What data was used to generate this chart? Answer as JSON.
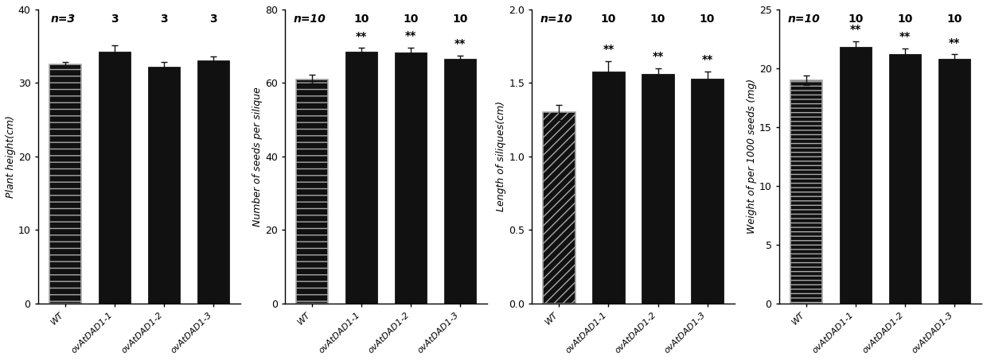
{
  "subplots": [
    {
      "ylabel": "Plant height(cm)",
      "categories": [
        "WT",
        "ovAtDAD1-1",
        "ovAtDAD1-2",
        "ovAtDAD1-3"
      ],
      "values": [
        32.5,
        34.3,
        32.2,
        33.1
      ],
      "errors": [
        0.4,
        0.8,
        0.6,
        0.5
      ],
      "ylim": [
        0,
        40
      ],
      "yticks": [
        0,
        10,
        20,
        30,
        40
      ],
      "n_labels": [
        "n=3",
        "3",
        "3",
        "3"
      ],
      "sig_labels": [
        "",
        "",
        "",
        ""
      ],
      "wt_hatch": "--",
      "n_italic": true
    },
    {
      "ylabel": "Number of seeds per silique",
      "categories": [
        "WT",
        "ovAtDAD1-1",
        "ovAtDAD1-2",
        "ovAtDAD1-3"
      ],
      "values": [
        61.0,
        68.5,
        68.2,
        66.5
      ],
      "errors": [
        1.2,
        1.0,
        1.5,
        1.0
      ],
      "ylim": [
        0,
        80
      ],
      "yticks": [
        0,
        20,
        40,
        60,
        80
      ],
      "n_labels": [
        "n=10",
        "10",
        "10",
        "10"
      ],
      "sig_labels": [
        "",
        "**",
        "**",
        "**"
      ],
      "wt_hatch": "--",
      "n_italic": true
    },
    {
      "ylabel": "Length of siliques(cm)",
      "categories": [
        "WT",
        "ovAtDAD1-1",
        "ovAtDAD1-2",
        "ovAtDAD1-3"
      ],
      "values": [
        1.3,
        1.58,
        1.56,
        1.53
      ],
      "errors": [
        0.05,
        0.07,
        0.04,
        0.05
      ],
      "ylim": [
        0.0,
        2.0
      ],
      "yticks": [
        0.0,
        0.5,
        1.0,
        1.5,
        2.0
      ],
      "n_labels": [
        "n=10",
        "10",
        "10",
        "10"
      ],
      "sig_labels": [
        "",
        "**",
        "**",
        "**"
      ],
      "wt_hatch": "///",
      "n_italic": true
    },
    {
      "ylabel": "Weight of per 1000 seeds (mg)",
      "categories": [
        "WT",
        "ovAtDAD1-1",
        "ovAtDAD1-2",
        "ovAtDAD1-3"
      ],
      "values": [
        19.0,
        21.8,
        21.2,
        20.8
      ],
      "errors": [
        0.4,
        0.5,
        0.5,
        0.4
      ],
      "ylim": [
        0,
        25
      ],
      "yticks": [
        0,
        5,
        10,
        15,
        20,
        25
      ],
      "n_labels": [
        "n=10",
        "10",
        "10",
        "10"
      ],
      "sig_labels": [
        "",
        "**",
        "**",
        "**"
      ],
      "wt_hatch": "---",
      "n_italic": true
    }
  ],
  "bar_color": "#111111",
  "wt_bar_facecolor": "#111111",
  "wt_bar_edgecolor": "#aaaaaa",
  "error_color": "#111111",
  "tick_fontsize": 9,
  "label_fontsize": 9,
  "n_label_fontsize": 10,
  "sig_fontsize": 10,
  "xticklabel_fontsize": 8
}
